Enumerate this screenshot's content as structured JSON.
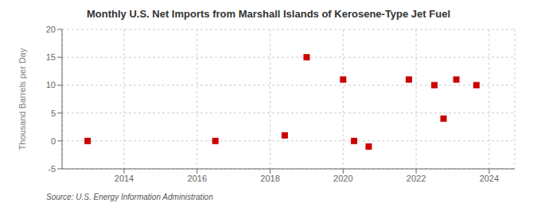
{
  "chart_data": {
    "type": "scatter",
    "title": "Monthly U.S. Net Imports from Marshall Islands of Kerosene-Type Jet Fuel",
    "y_label": "Thousand Barrels per Day",
    "annotations": [
      "Source: U.S. Energy Information Administration"
    ],
    "x": [
      2013.0,
      2016.5,
      2018.4,
      2019.0,
      2020.0,
      2020.3,
      2020.7,
      2021.8,
      2022.5,
      2022.75,
      2023.1,
      2023.65
    ],
    "values": [
      0,
      0,
      1,
      15,
      11,
      0,
      -1,
      11,
      10,
      4,
      11,
      10
    ],
    "color": "#cc0000",
    "marker": "square",
    "xlim": [
      2012.3,
      2024.7
    ],
    "xticks": [
      2014,
      2016,
      2018,
      2020,
      2022,
      2024
    ],
    "ylim": [
      -5,
      20
    ],
    "yticks": [
      -5,
      0,
      5,
      10,
      15,
      20
    ],
    "grid": true
  }
}
